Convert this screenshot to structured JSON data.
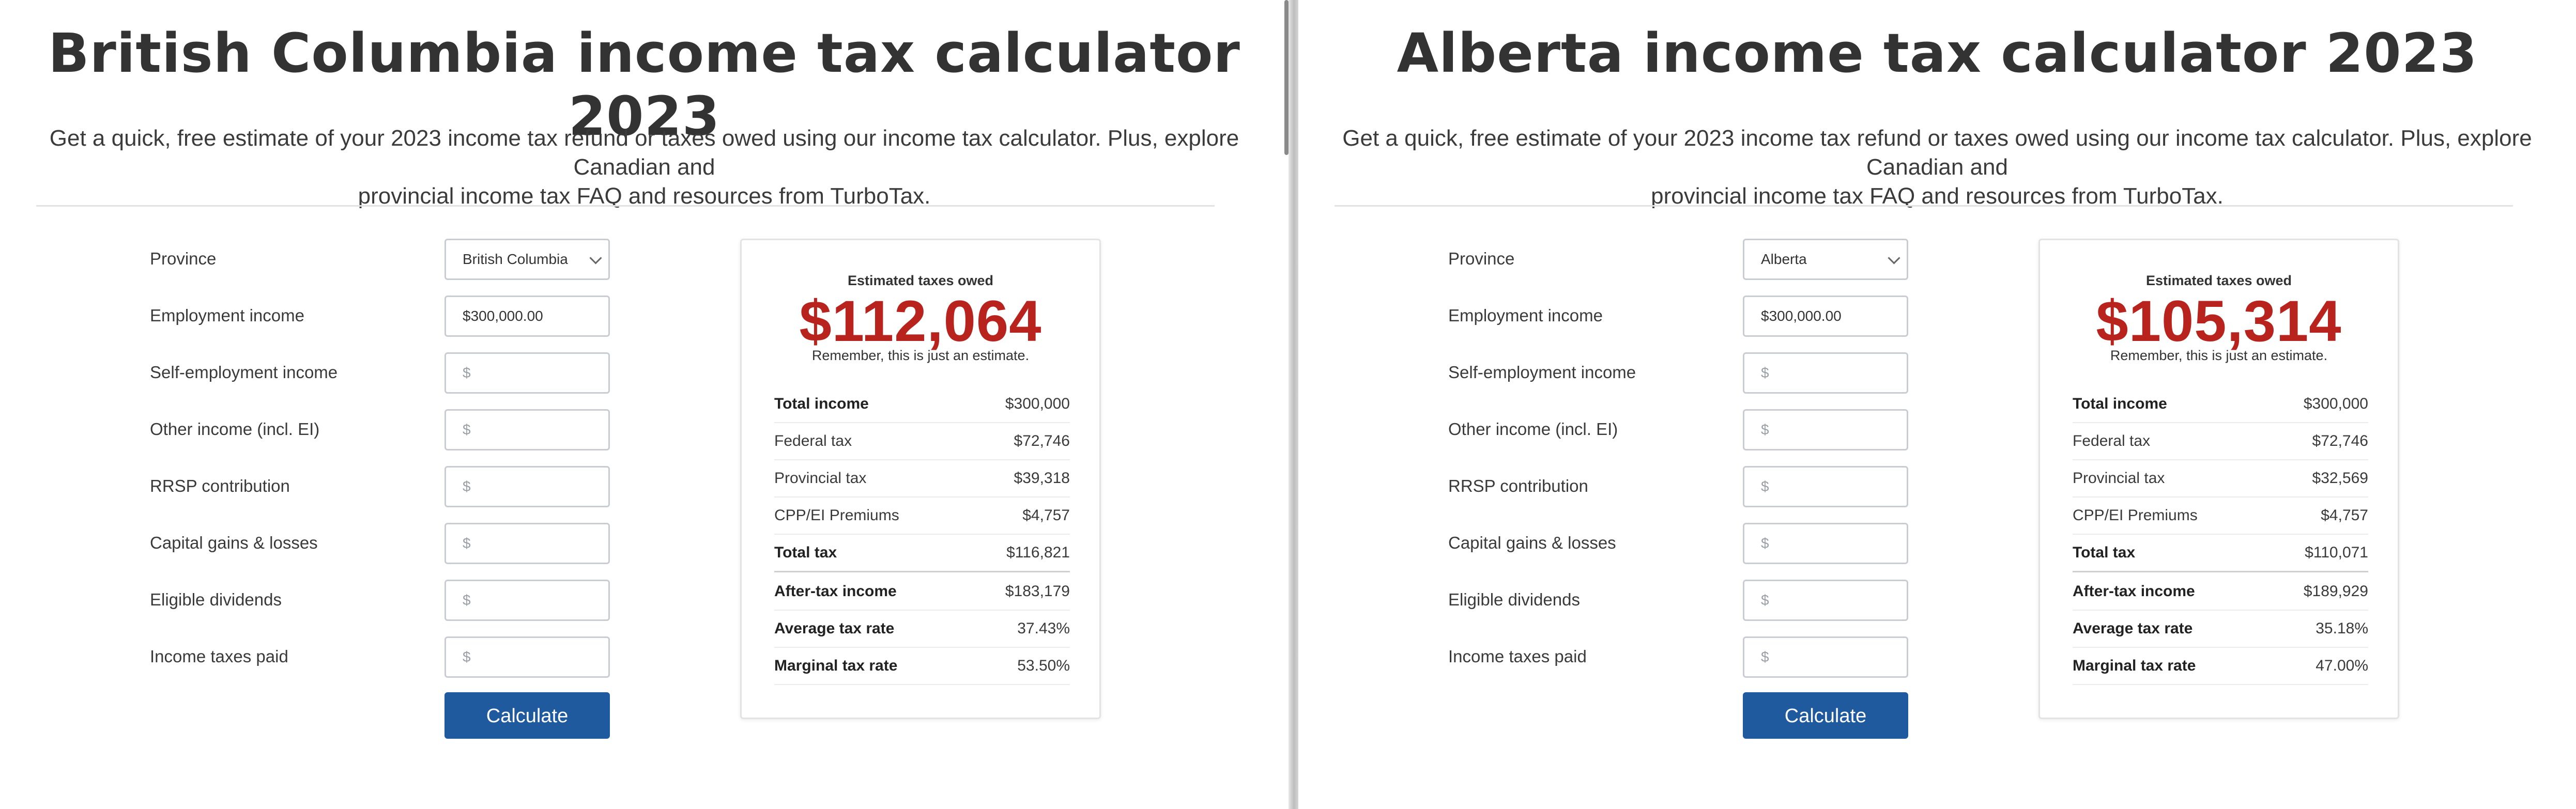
{
  "panes": [
    {
      "title": "British Columbia income tax calculator 2023",
      "subtitle_line1": "Get a quick, free estimate of your 2023 income tax refund or taxes owed using our income tax calculator. Plus, explore Canadian and",
      "subtitle_line2": "provincial income tax FAQ and resources from TurboTax.",
      "form": {
        "province_label": "Province",
        "province_value": "British Columbia",
        "employment_label": "Employment income",
        "employment_value": "$300,000.00",
        "self_employment_label": "Self-employment income",
        "self_employment_placeholder": "$",
        "other_income_label": "Other income (incl. EI)",
        "other_income_placeholder": "$",
        "rrsp_label": "RRSP contribution",
        "rrsp_placeholder": "$",
        "capital_gains_label": "Capital gains & losses",
        "capital_gains_placeholder": "$",
        "dividends_label": "Eligible dividends",
        "dividends_placeholder": "$",
        "taxes_paid_label": "Income taxes paid",
        "taxes_paid_placeholder": "$",
        "calculate_label": "Calculate"
      },
      "result": {
        "heading": "Estimated taxes owed",
        "amount": "$112,064",
        "note": "Remember, this is just an estimate.",
        "rows": [
          {
            "label": "Total income",
            "value": "$300,000"
          },
          {
            "label": "Federal tax",
            "value": "$72,746"
          },
          {
            "label": "Provincial tax",
            "value": "$39,318"
          },
          {
            "label": "CPP/EI Premiums",
            "value": "$4,757"
          },
          {
            "label": "Total tax",
            "value": "$116,821"
          },
          {
            "label": "After-tax income",
            "value": "$183,179"
          },
          {
            "label": "Average tax rate",
            "value": "37.43%"
          },
          {
            "label": "Marginal tax rate",
            "value": "53.50%"
          }
        ]
      }
    },
    {
      "title": "Alberta income tax calculator 2023",
      "subtitle_line1": "Get a quick, free estimate of your 2023 income tax refund or taxes owed using our income tax calculator. Plus, explore Canadian and",
      "subtitle_line2": "provincial income tax FAQ and resources from TurboTax.",
      "form": {
        "province_label": "Province",
        "province_value": "Alberta",
        "employment_label": "Employment income",
        "employment_value": "$300,000.00",
        "self_employment_label": "Self-employment income",
        "self_employment_placeholder": "$",
        "other_income_label": "Other income (incl. EI)",
        "other_income_placeholder": "$",
        "rrsp_label": "RRSP contribution",
        "rrsp_placeholder": "$",
        "capital_gains_label": "Capital gains & losses",
        "capital_gains_placeholder": "$",
        "dividends_label": "Eligible dividends",
        "dividends_placeholder": "$",
        "taxes_paid_label": "Income taxes paid",
        "taxes_paid_placeholder": "$",
        "calculate_label": "Calculate"
      },
      "result": {
        "heading": "Estimated taxes owed",
        "amount": "$105,314",
        "note": "Remember, this is just an estimate.",
        "rows": [
          {
            "label": "Total income",
            "value": "$300,000"
          },
          {
            "label": "Federal tax",
            "value": "$72,746"
          },
          {
            "label": "Provincial tax",
            "value": "$32,569"
          },
          {
            "label": "CPP/EI Premiums",
            "value": "$4,757"
          },
          {
            "label": "Total tax",
            "value": "$110,071"
          },
          {
            "label": "After-tax income",
            "value": "$189,929"
          },
          {
            "label": "Average tax rate",
            "value": "35.18%"
          },
          {
            "label": "Marginal tax rate",
            "value": "47.00%"
          }
        ]
      }
    }
  ],
  "colors": {
    "accent_button": "#1f5a9e",
    "amount_red": "#b8231d",
    "title_text": "#333333"
  }
}
